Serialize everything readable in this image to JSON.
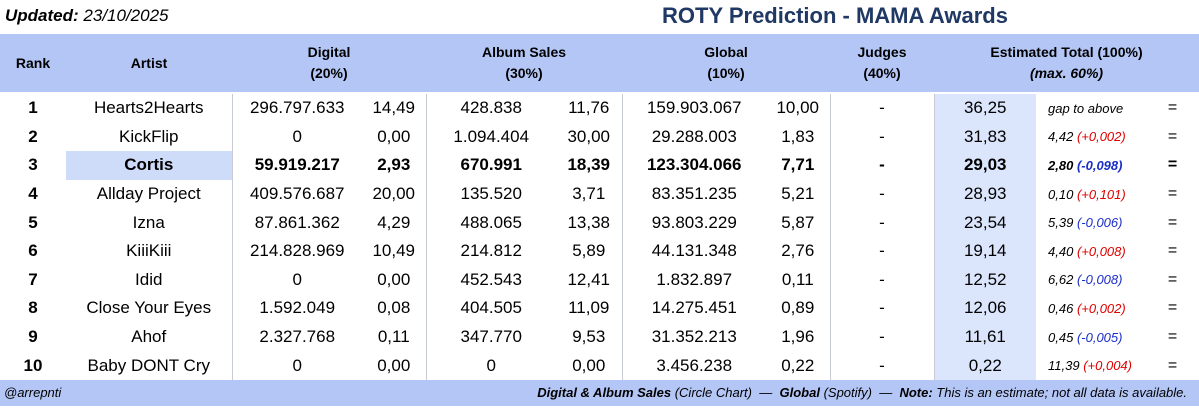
{
  "header": {
    "updated_label": "Updated:",
    "updated_date": "23/10/2025",
    "title": "ROTY Prediction - MAMA Awards"
  },
  "columns": {
    "rank": "Rank",
    "artist": "Artist",
    "digital": "Digital",
    "digital_pct": "(20%)",
    "album": "Album Sales",
    "album_pct": "(30%)",
    "global": "Global",
    "global_pct": "(10%)",
    "judges": "Judges",
    "judges_pct": "(40%)",
    "total": "Estimated Total  (100%)",
    "total_max": "(max. 60%)"
  },
  "rows": [
    {
      "rank": "1",
      "artist": "Hearts2Hearts",
      "digital": "296.797.633",
      "digital_score": "14,49",
      "album": "428.838",
      "album_score": "11,76",
      "global": "159.903.067",
      "global_score": "10,00",
      "judges": "-",
      "total": "36,25",
      "gap": "gap to above",
      "change": "",
      "eq": "="
    },
    {
      "rank": "2",
      "artist": "KickFlip",
      "digital": "0",
      "digital_score": "0,00",
      "album": "1.094.404",
      "album_score": "30,00",
      "global": "29.288.003",
      "global_score": "1,83",
      "judges": "-",
      "total": "31,83",
      "gap": "4,42",
      "change": "(+0,002)",
      "eq": "="
    },
    {
      "rank": "3",
      "artist": "Cortis",
      "digital": "59.919.217",
      "digital_score": "2,93",
      "album": "670.991",
      "album_score": "18,39",
      "global": "123.304.066",
      "global_score": "7,71",
      "judges": "-",
      "total": "29,03",
      "gap": "2,80",
      "change": "(-0,098)",
      "eq": "="
    },
    {
      "rank": "4",
      "artist": "Allday Project",
      "digital": "409.576.687",
      "digital_score": "20,00",
      "album": "135.520",
      "album_score": "3,71",
      "global": "83.351.235",
      "global_score": "5,21",
      "judges": "-",
      "total": "28,93",
      "gap": "0,10",
      "change": "(+0,101)",
      "eq": "="
    },
    {
      "rank": "5",
      "artist": "Izna",
      "digital": "87.861.362",
      "digital_score": "4,29",
      "album": "488.065",
      "album_score": "13,38",
      "global": "93.803.229",
      "global_score": "5,87",
      "judges": "-",
      "total": "23,54",
      "gap": "5,39",
      "change": "(-0,006)",
      "eq": "="
    },
    {
      "rank": "6",
      "artist": "KiiiKiii",
      "digital": "214.828.969",
      "digital_score": "10,49",
      "album": "214.812",
      "album_score": "5,89",
      "global": "44.131.348",
      "global_score": "2,76",
      "judges": "-",
      "total": "19,14",
      "gap": "4,40",
      "change": "(+0,008)",
      "eq": "="
    },
    {
      "rank": "7",
      "artist": "Idid",
      "digital": "0",
      "digital_score": "0,00",
      "album": "452.543",
      "album_score": "12,41",
      "global": "1.832.897",
      "global_score": "0,11",
      "judges": "-",
      "total": "12,52",
      "gap": "6,62",
      "change": "(-0,008)",
      "eq": "="
    },
    {
      "rank": "8",
      "artist": "Close Your Eyes",
      "digital": "1.592.049",
      "digital_score": "0,08",
      "album": "404.505",
      "album_score": "11,09",
      "global": "14.275.451",
      "global_score": "0,89",
      "judges": "-",
      "total": "12,06",
      "gap": "0,46",
      "change": "(+0,002)",
      "eq": "="
    },
    {
      "rank": "9",
      "artist": "Ahof",
      "digital": "2.327.768",
      "digital_score": "0,11",
      "album": "347.770",
      "album_score": "9,53",
      "global": "31.352.213",
      "global_score": "1,96",
      "judges": "-",
      "total": "11,61",
      "gap": "0,45",
      "change": "(-0,005)",
      "eq": "="
    },
    {
      "rank": "10",
      "artist": "Baby DONT Cry",
      "digital": "0",
      "digital_score": "0,00",
      "album": "0",
      "album_score": "0,00",
      "global": "3.456.238",
      "global_score": "0,22",
      "judges": "-",
      "total": "0,22",
      "gap": "11,39",
      "change": "(+0,004)",
      "eq": "="
    }
  ],
  "footer": {
    "handle": "@arrepnti",
    "src1_bold": "Digital & Album Sales",
    "src1": "(Circle Chart)",
    "dash1": "—",
    "src2_bold": "Global",
    "src2": "(Spotify)",
    "dash2": "—",
    "note_bold": "Note:",
    "note": "This is an estimate; not all data is available."
  },
  "colors": {
    "header_bg": "#b4c6f5",
    "total_bg": "#dbe5fb",
    "title": "#1f3864",
    "positive": "#e00000",
    "negative": "#1a2ec8"
  }
}
